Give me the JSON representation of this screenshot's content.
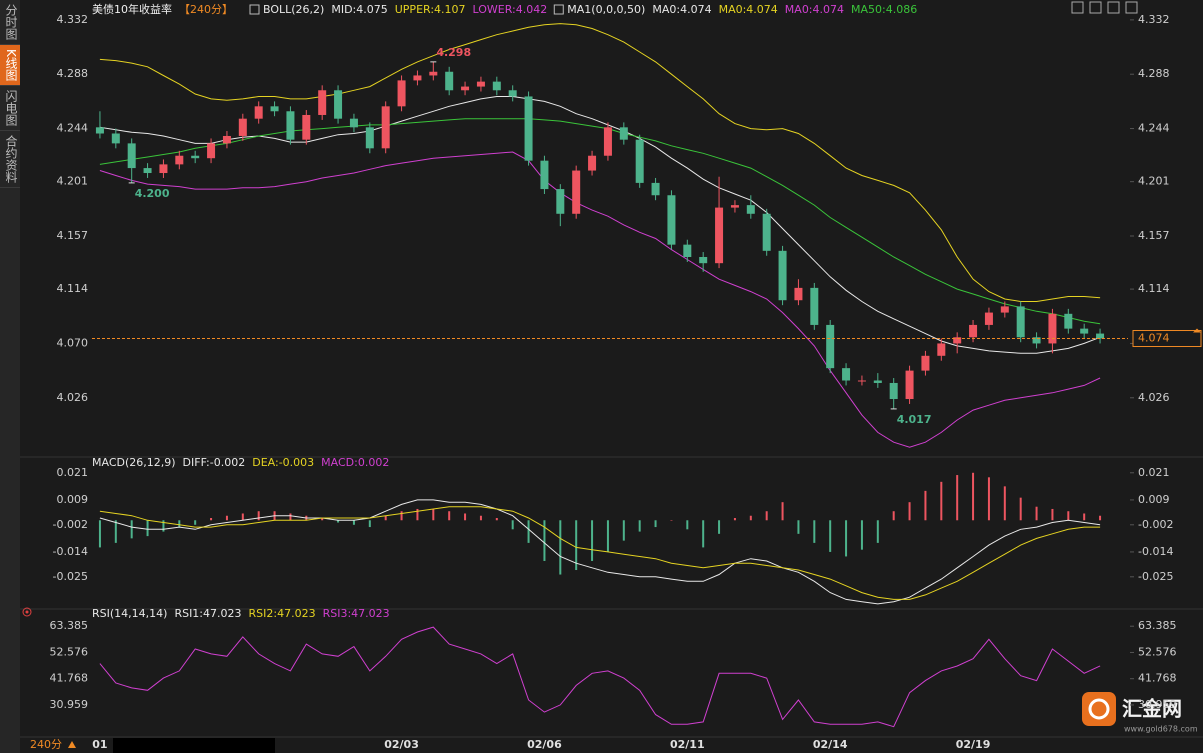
{
  "sidebar": {
    "tabs": [
      "分时图",
      "K线图",
      "闪电图",
      "合约资料"
    ]
  },
  "period_label": "240分",
  "logo": {
    "name": "汇金网",
    "url": "www.gold678.com"
  },
  "chart_data": [
    {
      "type": "candlestick",
      "title": "美债10年收益率",
      "period": "【240分】",
      "boll_label": "BOLL(26,2)",
      "ma_label": "MA1(0,0,0,50)",
      "ma0_labels": [
        {
          "text": "MA0:4.074",
          "color": "#e8e8e8"
        },
        {
          "text": "MA0:4.074",
          "color": "#e5d322"
        },
        {
          "text": "MA0:4.074",
          "color": "#d040d0"
        }
      ],
      "categories": [
        "01",
        null,
        null,
        null,
        null,
        null,
        null,
        null,
        null,
        null,
        null,
        null,
        null,
        null,
        null,
        null,
        null,
        null,
        null,
        "02/03",
        null,
        null,
        null,
        null,
        null,
        null,
        null,
        null,
        "02/06",
        null,
        null,
        null,
        null,
        null,
        null,
        null,
        null,
        "02/11",
        null,
        null,
        null,
        null,
        null,
        null,
        null,
        null,
        "02/14",
        null,
        null,
        null,
        null,
        null,
        null,
        null,
        null,
        "02/19",
        null,
        null,
        null,
        null,
        null,
        null,
        null,
        null
      ],
      "open": [
        4.245,
        4.24,
        4.232,
        4.212,
        4.208,
        4.215,
        4.222,
        4.22,
        4.232,
        4.238,
        4.252,
        4.262,
        4.258,
        4.235,
        4.255,
        4.275,
        4.252,
        4.245,
        4.228,
        4.262,
        4.283,
        4.287,
        4.29,
        4.275,
        4.278,
        4.282,
        4.275,
        4.27,
        4.218,
        4.195,
        4.175,
        4.21,
        4.222,
        4.245,
        4.235,
        4.2,
        4.19,
        4.15,
        4.14,
        4.135,
        4.18,
        4.182,
        4.175,
        4.145,
        4.105,
        4.115,
        4.085,
        4.05,
        4.04,
        4.04,
        4.038,
        4.025,
        4.048,
        4.06,
        4.07,
        4.075,
        4.085,
        4.095,
        4.1,
        4.075,
        4.07,
        4.094,
        4.082,
        4.078
      ],
      "high": [
        4.258,
        4.244,
        4.236,
        4.216,
        4.219,
        4.226,
        4.226,
        4.236,
        4.242,
        4.256,
        4.266,
        4.266,
        4.262,
        4.259,
        4.279,
        4.279,
        4.256,
        4.249,
        4.266,
        4.287,
        4.291,
        4.298,
        4.294,
        4.282,
        4.286,
        4.286,
        4.279,
        4.274,
        4.222,
        4.199,
        4.214,
        4.226,
        4.249,
        4.249,
        4.239,
        4.204,
        4.194,
        4.154,
        4.144,
        4.205,
        4.186,
        4.19,
        4.179,
        4.149,
        4.122,
        4.119,
        4.089,
        4.054,
        4.044,
        4.046,
        4.042,
        4.052,
        4.064,
        4.074,
        4.079,
        4.089,
        4.099,
        4.104,
        4.104,
        4.079,
        4.098,
        4.098,
        4.086,
        4.082
      ],
      "low": [
        4.236,
        4.228,
        4.2,
        4.204,
        4.204,
        4.211,
        4.216,
        4.216,
        4.228,
        4.234,
        4.248,
        4.254,
        4.231,
        4.231,
        4.251,
        4.248,
        4.241,
        4.224,
        4.224,
        4.258,
        4.279,
        4.283,
        4.271,
        4.271,
        4.274,
        4.271,
        4.266,
        4.214,
        4.191,
        4.165,
        4.171,
        4.206,
        4.218,
        4.231,
        4.196,
        4.186,
        4.146,
        4.136,
        4.128,
        4.131,
        4.176,
        4.171,
        4.141,
        4.101,
        4.101,
        4.081,
        4.046,
        4.036,
        4.036,
        4.034,
        4.017,
        4.021,
        4.044,
        4.056,
        4.062,
        4.071,
        4.081,
        4.091,
        4.071,
        4.066,
        4.062,
        4.078,
        4.074,
        4.07
      ],
      "close": [
        4.24,
        4.232,
        4.212,
        4.208,
        4.215,
        4.222,
        4.22,
        4.232,
        4.238,
        4.252,
        4.262,
        4.258,
        4.235,
        4.255,
        4.275,
        4.252,
        4.245,
        4.228,
        4.262,
        4.283,
        4.287,
        4.29,
        4.275,
        4.278,
        4.282,
        4.275,
        4.27,
        4.218,
        4.195,
        4.175,
        4.21,
        4.222,
        4.245,
        4.235,
        4.2,
        4.19,
        4.15,
        4.14,
        4.135,
        4.18,
        4.182,
        4.175,
        4.145,
        4.105,
        4.115,
        4.085,
        4.05,
        4.04,
        4.04,
        4.038,
        4.025,
        4.048,
        4.06,
        4.07,
        4.075,
        4.085,
        4.095,
        4.1,
        4.075,
        4.07,
        4.094,
        4.082,
        4.078,
        4.074
      ],
      "up_color": "#ee5560",
      "down_color": "#4db38c",
      "series": [
        {
          "name": "MID:4.075",
          "color": "#e8e8e8",
          "values": [
            4.245,
            4.243,
            4.241,
            4.24,
            4.238,
            4.235,
            4.232,
            4.232,
            4.235,
            4.237,
            4.238,
            4.236,
            4.233,
            4.233,
            4.236,
            4.239,
            4.24,
            4.242,
            4.246,
            4.25,
            4.254,
            4.258,
            4.262,
            4.265,
            4.268,
            4.27,
            4.27,
            4.268,
            4.266,
            4.262,
            4.256,
            4.252,
            4.247,
            4.242,
            4.236,
            4.229,
            4.22,
            4.212,
            4.203,
            4.196,
            4.191,
            4.186,
            4.176,
            4.163,
            4.15,
            4.137,
            4.124,
            4.113,
            4.104,
            4.096,
            4.09,
            4.084,
            4.078,
            4.072,
            4.068,
            4.066,
            4.064,
            4.063,
            4.062,
            4.062,
            4.064,
            4.066,
            4.07,
            4.075
          ]
        },
        {
          "name": "UPPER:4.107",
          "color": "#e5d322",
          "values": [
            4.3,
            4.299,
            4.297,
            4.294,
            4.287,
            4.28,
            4.272,
            4.268,
            4.267,
            4.268,
            4.27,
            4.27,
            4.268,
            4.268,
            4.27,
            4.272,
            4.275,
            4.278,
            4.285,
            4.292,
            4.298,
            4.303,
            4.308,
            4.312,
            4.316,
            4.32,
            4.323,
            4.326,
            4.328,
            4.329,
            4.328,
            4.325,
            4.32,
            4.314,
            4.306,
            4.298,
            4.288,
            4.278,
            4.268,
            4.256,
            4.248,
            4.244,
            4.243,
            4.244,
            4.24,
            4.232,
            4.222,
            4.212,
            4.206,
            4.202,
            4.198,
            4.192,
            4.178,
            4.162,
            4.14,
            4.122,
            4.112,
            4.106,
            4.104,
            4.104,
            4.106,
            4.108,
            4.108,
            4.107
          ]
        },
        {
          "name": "LOWER:4.042",
          "color": "#d040d0",
          "values": [
            4.21,
            4.206,
            4.202,
            4.199,
            4.198,
            4.197,
            4.195,
            4.195,
            4.195,
            4.196,
            4.196,
            4.197,
            4.199,
            4.201,
            4.204,
            4.206,
            4.208,
            4.211,
            4.214,
            4.216,
            4.218,
            4.22,
            4.221,
            4.222,
            4.223,
            4.224,
            4.225,
            4.218,
            4.202,
            4.192,
            4.184,
            4.178,
            4.173,
            4.166,
            4.16,
            4.155,
            4.146,
            4.138,
            4.13,
            4.122,
            4.117,
            4.112,
            4.106,
            4.095,
            4.082,
            4.068,
            4.048,
            4.03,
            4.012,
            3.998,
            3.99,
            3.986,
            3.99,
            3.998,
            4.008,
            4.016,
            4.02,
            4.024,
            4.026,
            4.028,
            4.03,
            4.033,
            4.036,
            4.042
          ]
        },
        {
          "name": "MA50:4.086",
          "color": "#3ac43a",
          "values": [
            4.215,
            4.217,
            4.219,
            4.221,
            4.223,
            4.225,
            4.228,
            4.23,
            4.232,
            4.235,
            4.238,
            4.24,
            4.242,
            4.243,
            4.244,
            4.245,
            4.246,
            4.247,
            4.247,
            4.248,
            4.249,
            4.25,
            4.251,
            4.252,
            4.252,
            4.252,
            4.252,
            4.252,
            4.251,
            4.25,
            4.248,
            4.246,
            4.244,
            4.24,
            4.237,
            4.234,
            4.23,
            4.227,
            4.224,
            4.22,
            4.216,
            4.212,
            4.205,
            4.198,
            4.19,
            4.182,
            4.172,
            4.164,
            4.156,
            4.148,
            4.14,
            4.133,
            4.126,
            4.12,
            4.114,
            4.11,
            4.106,
            4.102,
            4.099,
            4.096,
            4.094,
            4.091,
            4.088,
            4.086
          ]
        }
      ],
      "ylim": [
        3.98,
        4.34
      ],
      "yticks": [
        4.332,
        4.288,
        4.244,
        4.201,
        4.157,
        4.114,
        {
          "value": 4.07,
          "label": "4.070"
        },
        4.026
      ],
      "extremes": [
        4.298,
        {
          "value": 4.2,
          "label": "4.200"
        },
        4.017
      ],
      "last": 4.074,
      "last_color": "#f08a24",
      "grid": false
    },
    {
      "type": "macd",
      "title": "MACD(26,12,9)",
      "ylim": [
        -0.038,
        0.024
      ],
      "yticks": [
        0.021,
        0.009,
        -0.002,
        -0.014,
        -0.025
      ],
      "series": [
        {
          "name": "DIFF:-0.002",
          "color": "#e8e8e8",
          "values": [
            0.001,
            -0.001,
            -0.003,
            -0.004,
            -0.004,
            -0.003,
            -0.004,
            -0.002,
            -0.001,
            0.0,
            0.001,
            0.002,
            0.002,
            0.001,
            0.001,
            0.0,
            0.0,
            0.001,
            0.004,
            0.007,
            0.009,
            0.009,
            0.008,
            0.008,
            0.007,
            0.005,
            0.002,
            -0.004,
            -0.01,
            -0.016,
            -0.019,
            -0.021,
            -0.023,
            -0.024,
            -0.025,
            -0.025,
            -0.026,
            -0.027,
            -0.027,
            -0.024,
            -0.019,
            -0.017,
            -0.018,
            -0.021,
            -0.023,
            -0.027,
            -0.032,
            -0.035,
            -0.036,
            -0.037,
            -0.036,
            -0.034,
            -0.03,
            -0.026,
            -0.021,
            -0.016,
            -0.011,
            -0.007,
            -0.004,
            -0.003,
            -0.001,
            0.0,
            -0.001,
            -0.002
          ]
        },
        {
          "name": "DEA:-0.003",
          "color": "#e5d322",
          "values": [
            0.004,
            0.003,
            0.002,
            0.0,
            -0.001,
            -0.002,
            -0.003,
            -0.003,
            -0.002,
            -0.002,
            -0.001,
            0.0,
            0.0,
            0.0,
            0.001,
            0.001,
            0.001,
            0.001,
            0.002,
            0.003,
            0.004,
            0.005,
            0.006,
            0.006,
            0.006,
            0.005,
            0.004,
            0.001,
            -0.003,
            -0.008,
            -0.012,
            -0.013,
            -0.014,
            -0.015,
            -0.016,
            -0.017,
            -0.019,
            -0.02,
            -0.021,
            -0.02,
            -0.019,
            -0.019,
            -0.02,
            -0.021,
            -0.022,
            -0.024,
            -0.026,
            -0.029,
            -0.032,
            -0.034,
            -0.035,
            -0.035,
            -0.033,
            -0.03,
            -0.027,
            -0.023,
            -0.019,
            -0.015,
            -0.011,
            -0.008,
            -0.006,
            -0.004,
            -0.003,
            -0.003
          ]
        }
      ],
      "histogram": {
        "name": "MACD:0.002",
        "color": "#d040d0",
        "up_color": "#ee5560",
        "down_color": "#4db38c",
        "values": [
          -0.012,
          -0.01,
          -0.008,
          -0.007,
          -0.005,
          -0.003,
          -0.002,
          0.001,
          0.002,
          0.003,
          0.004,
          0.004,
          0.003,
          0.002,
          0.001,
          -0.001,
          -0.002,
          -0.003,
          0.002,
          0.004,
          0.005,
          0.005,
          0.004,
          0.003,
          0.002,
          0.001,
          -0.004,
          -0.01,
          -0.018,
          -0.024,
          -0.022,
          -0.018,
          -0.014,
          -0.009,
          -0.005,
          -0.003,
          0.0,
          -0.004,
          -0.012,
          -0.006,
          0.001,
          0.002,
          0.004,
          0.008,
          -0.006,
          -0.01,
          -0.014,
          -0.016,
          -0.013,
          -0.01,
          0.004,
          0.008,
          0.013,
          0.017,
          0.02,
          0.021,
          0.019,
          0.015,
          0.01,
          0.006,
          0.005,
          0.004,
          0.003,
          0.002
        ]
      },
      "grid": false
    },
    {
      "type": "line",
      "title": "RSI(14,14,14)",
      "ylim": [
        19,
        68
      ],
      "yticks": [
        63.385,
        52.576,
        41.768,
        30.959
      ],
      "other_lines": [
        {
          "text": "RSI1:47.023",
          "color": "#e8e8e8"
        },
        {
          "text": "RSI2:47.023",
          "color": "#e5d322"
        }
      ],
      "series": [
        {
          "name": "RSI3:47.023",
          "color": "#d040d0",
          "values": [
            48,
            40,
            38,
            37,
            42,
            45,
            54,
            52,
            51,
            59,
            52,
            48,
            45,
            56,
            52,
            51,
            55,
            45,
            51,
            58,
            61,
            63,
            56,
            54,
            52,
            48,
            52,
            33,
            28,
            31,
            39,
            44,
            45,
            42,
            37,
            27,
            23,
            23,
            24,
            44,
            44,
            44,
            42,
            25,
            33,
            24,
            23,
            23,
            23,
            24,
            22,
            36,
            41,
            45,
            47,
            50,
            58,
            50,
            43,
            41,
            54,
            49,
            44,
            47.023
          ]
        }
      ],
      "grid": false
    }
  ]
}
